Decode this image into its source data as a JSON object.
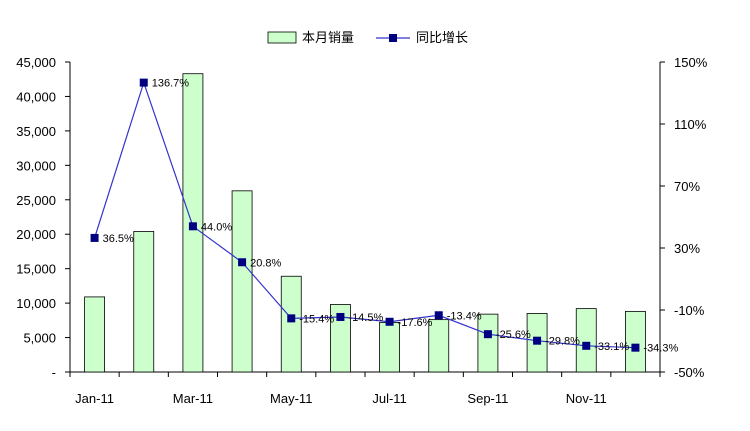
{
  "chart_data": {
    "type": "bar+line",
    "categories": [
      "Jan-11",
      "Feb-11",
      "Mar-11",
      "Apr-11",
      "May-11",
      "Jun-11",
      "Jul-11",
      "Aug-11",
      "Sep-11",
      "Oct-11",
      "Nov-11",
      "Dec-11"
    ],
    "x_tick_labels": [
      "Jan-11",
      "Mar-11",
      "May-11",
      "Jul-11",
      "Sep-11",
      "Nov-11"
    ],
    "series": [
      {
        "name": "本月销量",
        "type": "bar",
        "axis": "left",
        "values": [
          10900,
          20400,
          43300,
          26300,
          13900,
          9800,
          7200,
          7600,
          8400,
          8500,
          9200,
          8800
        ]
      },
      {
        "name": "同比增长",
        "type": "line",
        "axis": "right",
        "values": [
          36.5,
          136.7,
          44.0,
          20.8,
          -15.4,
          -14.5,
          -17.6,
          -13.4,
          -25.6,
          -29.8,
          -33.1,
          -34.3
        ],
        "labels": [
          "36.5%",
          "136.7%",
          "44.0%",
          "20.8%",
          "-15.4%",
          "-14.5%",
          "-17.6%",
          "-13.4%",
          "-25.6%",
          "-29.8%",
          "-33.1%",
          "-34.3%"
        ]
      }
    ],
    "left_axis": {
      "ylim": [
        0,
        45000
      ],
      "tick_values": [
        0,
        5000,
        10000,
        15000,
        20000,
        25000,
        30000,
        35000,
        40000,
        45000
      ],
      "tick_labels": [
        "-",
        "5,000",
        "10,000",
        "15,000",
        "20,000",
        "25,000",
        "30,000",
        "35,000",
        "40,000",
        "45,000"
      ]
    },
    "right_axis": {
      "ylim": [
        -50,
        150
      ],
      "tick_values": [
        -50,
        -10,
        30,
        70,
        110,
        150
      ],
      "tick_labels": [
        "-50%",
        "-10%",
        "30%",
        "70%",
        "110%",
        "150%"
      ]
    },
    "legend_position": "top-center",
    "grid": false,
    "colors": {
      "bar_fill": "#ccffcc",
      "bar_stroke": "#000000",
      "line": "#3333cc",
      "marker": "#000080"
    }
  }
}
